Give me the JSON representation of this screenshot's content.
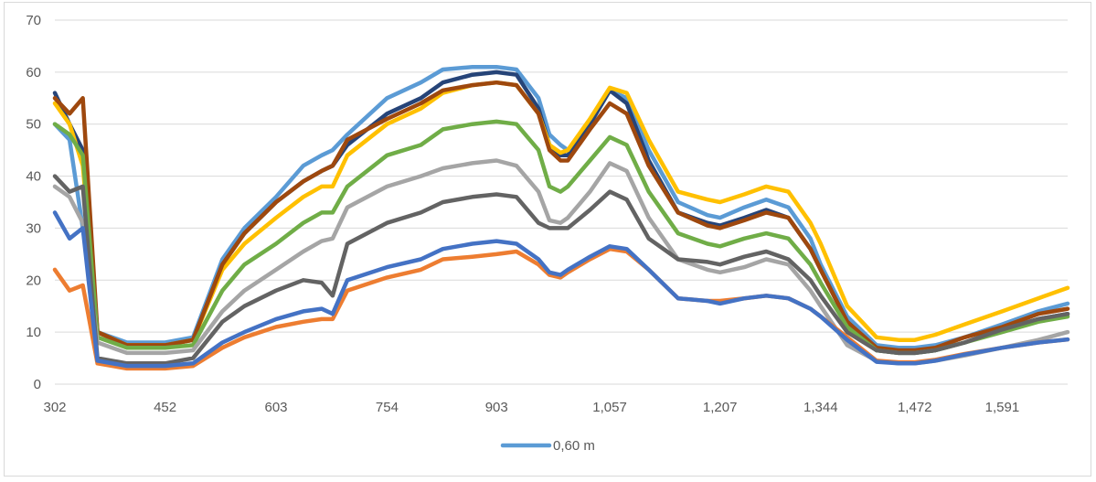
{
  "chart_data": {
    "type": "line",
    "title": "",
    "xlabel": "",
    "ylabel": "",
    "ylim": [
      0,
      70
    ],
    "y_ticks": [
      "0",
      "10",
      "20",
      "30",
      "40",
      "50",
      "60",
      "70"
    ],
    "x_ticks": [
      "302",
      "452",
      "603",
      "754",
      "903",
      "1,057",
      "1,207",
      "1,344",
      "1,472",
      "1,591"
    ],
    "grid": true,
    "legend": {
      "placement": "bottom",
      "entries": [
        {
          "label": "0,60 m",
          "color": "#5b9bd5"
        }
      ]
    },
    "x": [
      302,
      322,
      340,
      360,
      400,
      452,
      490,
      530,
      560,
      603,
      640,
      665,
      680,
      700,
      754,
      800,
      830,
      870,
      903,
      930,
      960,
      975,
      990,
      1000,
      1030,
      1057,
      1080,
      1110,
      1150,
      1190,
      1207,
      1240,
      1270,
      1300,
      1330,
      1344,
      1380,
      1420,
      1450,
      1472,
      1500,
      1540,
      1591,
      1640,
      1680
    ],
    "series": [
      {
        "color": "#5b9bd5",
        "values": [
          50,
          47,
          30,
          10,
          8,
          8,
          9,
          24,
          30,
          36,
          42,
          44,
          45,
          48,
          55,
          58,
          60.5,
          61,
          61,
          60.5,
          55,
          48,
          46,
          45,
          50,
          56.5,
          55,
          45,
          35,
          32.5,
          32,
          34,
          35.5,
          34,
          28,
          23,
          13,
          7.5,
          7,
          7,
          7.5,
          9,
          11.5,
          14,
          15.5
        ]
      },
      {
        "color": "#264478",
        "values": [
          56,
          50,
          45,
          10,
          7.5,
          7.5,
          8.5,
          23,
          29,
          35,
          39,
          41,
          42,
          46,
          52,
          55,
          58,
          59.5,
          60,
          59.5,
          53,
          46,
          44,
          44,
          50,
          56.5,
          54,
          43,
          33,
          31,
          30.5,
          32,
          33.5,
          32,
          26,
          22,
          12,
          6.5,
          6,
          6,
          6.5,
          8,
          10.5,
          12.5,
          13.5
        ]
      },
      {
        "color": "#ffc000",
        "values": [
          54,
          50,
          42,
          10,
          7.5,
          7.5,
          8.5,
          22,
          27,
          32,
          36,
          38,
          38,
          44,
          50,
          53,
          56,
          57.5,
          58,
          57.5,
          52,
          46,
          44.5,
          45,
          51,
          57,
          56,
          47,
          37,
          35.5,
          35,
          36.5,
          38,
          37,
          31,
          27,
          15,
          9,
          8.5,
          8.5,
          9.5,
          11.5,
          14,
          16.5,
          18.5
        ]
      },
      {
        "color": "#9e480e",
        "values": [
          55,
          52,
          55,
          10,
          7.5,
          7.5,
          8.5,
          23,
          29,
          35,
          39,
          41,
          42,
          47,
          51,
          54,
          56.5,
          57.5,
          58,
          57.5,
          52,
          45,
          43,
          43,
          49,
          54,
          52,
          42,
          33,
          30.5,
          30,
          31.5,
          33,
          32,
          26,
          22,
          12,
          7,
          6.5,
          6.5,
          7,
          9,
          11,
          13.5,
          14.5
        ]
      },
      {
        "color": "#70ad47",
        "values": [
          50,
          48,
          44,
          9,
          7,
          7,
          7.5,
          18,
          23,
          27,
          31,
          33,
          33,
          38,
          44,
          46,
          49,
          50,
          50.5,
          50,
          45,
          38,
          37,
          38,
          43,
          47.5,
          46,
          37,
          29,
          27,
          26.5,
          28,
          29,
          28,
          23,
          19.5,
          11,
          6.5,
          6,
          6,
          6.5,
          8,
          10,
          12,
          13
        ]
      },
      {
        "color": "#a5a5a5",
        "values": [
          38,
          36,
          31,
          8,
          6,
          6,
          6.5,
          14,
          18,
          22,
          25.5,
          27.5,
          28,
          34,
          38,
          40,
          41.5,
          42.5,
          43,
          42,
          37,
          31.5,
          31,
          32,
          37,
          42.5,
          41,
          32,
          24,
          22,
          21.5,
          22.5,
          24,
          23,
          18,
          15,
          7.5,
          4.5,
          4,
          4,
          4.5,
          5.5,
          7,
          8.5,
          10
        ]
      },
      {
        "color": "#636363",
        "values": [
          40,
          37,
          38,
          5,
          4,
          4,
          5,
          12,
          15,
          18,
          20,
          19.5,
          17,
          27,
          31,
          33,
          35,
          36,
          36.5,
          36,
          31,
          30,
          30,
          30,
          33.5,
          37,
          35.5,
          28,
          24,
          23.5,
          23,
          24.5,
          25.5,
          24,
          20,
          17,
          10,
          6.5,
          6,
          6,
          6.5,
          8,
          10.5,
          12.5,
          13.5
        ]
      },
      {
        "color": "#ed7d31",
        "values": [
          22,
          18,
          19,
          4,
          3,
          3,
          3.5,
          7,
          9,
          11,
          12,
          12.5,
          12.5,
          18,
          20.5,
          22,
          24,
          24.5,
          25,
          25.5,
          23,
          21,
          20.5,
          21.5,
          24,
          26,
          25.5,
          22,
          16.5,
          16,
          16,
          16.5,
          17,
          16.5,
          14.5,
          13,
          9,
          4.5,
          4.2,
          4.2,
          4.7,
          5.8,
          7,
          8,
          8.6
        ]
      },
      {
        "color": "#4472c4",
        "values": [
          33,
          28,
          30,
          4.5,
          3.5,
          3.5,
          4,
          8,
          10,
          12.5,
          14,
          14.5,
          13.5,
          20,
          22.5,
          24,
          26,
          27,
          27.5,
          27,
          24,
          21.5,
          21,
          22,
          24.5,
          26.5,
          26,
          22,
          16.5,
          16,
          15.5,
          16.5,
          17,
          16.5,
          14.5,
          13,
          8.5,
          4.3,
          4,
          4,
          4.5,
          5.7,
          7,
          8,
          8.6
        ]
      }
    ]
  }
}
